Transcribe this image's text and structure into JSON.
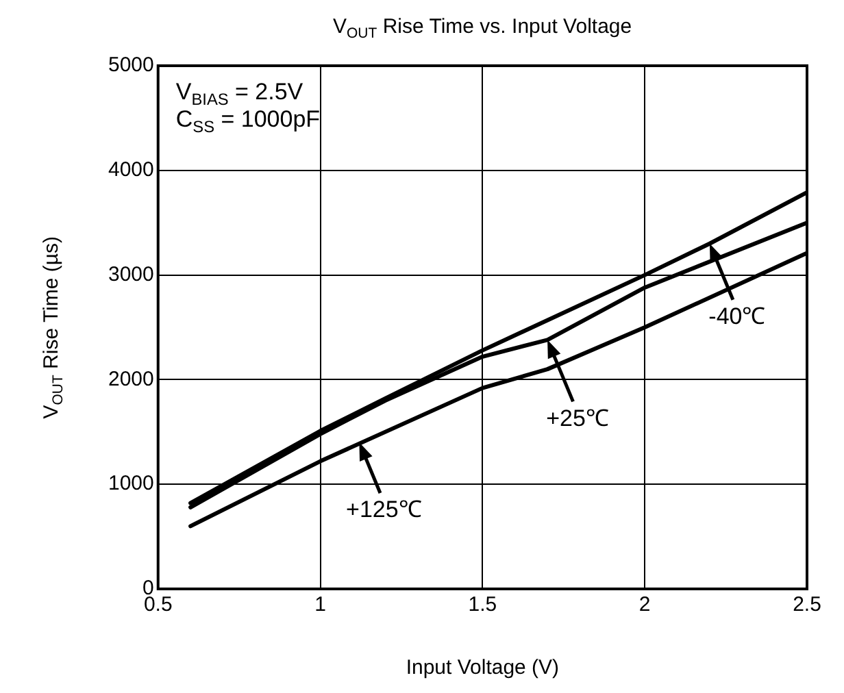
{
  "chart_data": {
    "type": "line",
    "title": "V$_{OUT}$ Rise Time vs. Input Voltage",
    "xlabel": "Input Voltage (V)",
    "ylabel": "V$_{OUT}$ Rise Time (µs)",
    "xlim": [
      0.5,
      2.5
    ],
    "xticks": [
      0.5,
      1,
      1.5,
      2,
      2.5
    ],
    "ylim": [
      0,
      5000
    ],
    "yticks": [
      0,
      1000,
      2000,
      3000,
      4000,
      5000
    ],
    "grid": true,
    "legend": false,
    "marker": "none",
    "line_style": "solid",
    "series": [
      {
        "color": "#000000",
        "x": [
          0.6,
          1.0,
          1.2,
          1.5,
          2.0,
          2.2,
          2.5
        ],
        "values": [
          820,
          1510,
          1820,
          2280,
          3000,
          3300,
          3790
        ]
      },
      {
        "color": "#000000",
        "x": [
          0.6,
          1.0,
          1.2,
          1.5,
          1.7,
          2.0,
          2.5
        ],
        "values": [
          780,
          1480,
          1800,
          2220,
          2380,
          2880,
          3500
        ]
      },
      {
        "color": "#000000",
        "x": [
          0.6,
          1.0,
          1.5,
          1.7,
          2.0,
          2.5
        ],
        "values": [
          600,
          1220,
          1920,
          2100,
          2500,
          3210
        ]
      }
    ],
    "annotations": [
      "V$_{BIAS}$ = 2.5V",
      "C$_{SS}$ = 1000pF",
      {
        "text": "-40℃",
        "x": 2.2,
        "y": 3300
      },
      {
        "text": "+25℃",
        "x": 1.7,
        "y": 2380
      },
      {
        "text": "+125℃",
        "x": 1.12,
        "y": 1400
      }
    ]
  }
}
